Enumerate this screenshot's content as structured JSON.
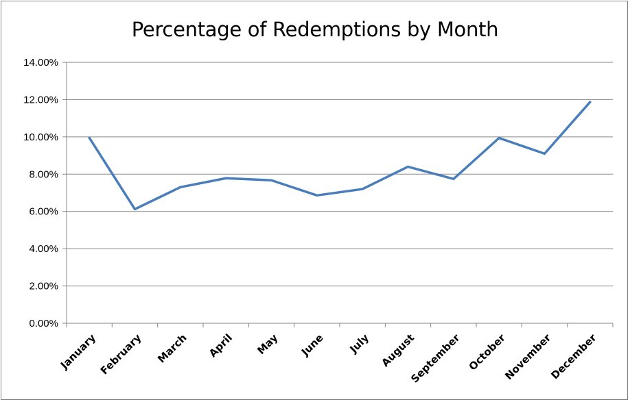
{
  "chart_data": {
    "type": "line",
    "title": "Percentage of Redemptions by Month",
    "xlabel": "",
    "ylabel": "",
    "categories": [
      "January",
      "February",
      "March",
      "April",
      "May",
      "June",
      "July",
      "August",
      "September",
      "October",
      "November",
      "December"
    ],
    "series": [
      {
        "values": [
          9.95,
          6.12,
          7.3,
          7.78,
          7.67,
          6.86,
          7.2,
          8.4,
          7.74,
          9.94,
          9.1,
          11.87
        ],
        "color": "#4A7EBB"
      }
    ],
    "ylim": [
      0,
      14
    ],
    "yticks": [
      "0.00%",
      "2.00%",
      "4.00%",
      "6.00%",
      "8.00%",
      "10.00%",
      "12.00%",
      "14.00%"
    ],
    "grid": true,
    "legend": "none",
    "colors": {
      "line": "#4A7EBB",
      "grid": "#868686",
      "axis": "#868686"
    }
  }
}
